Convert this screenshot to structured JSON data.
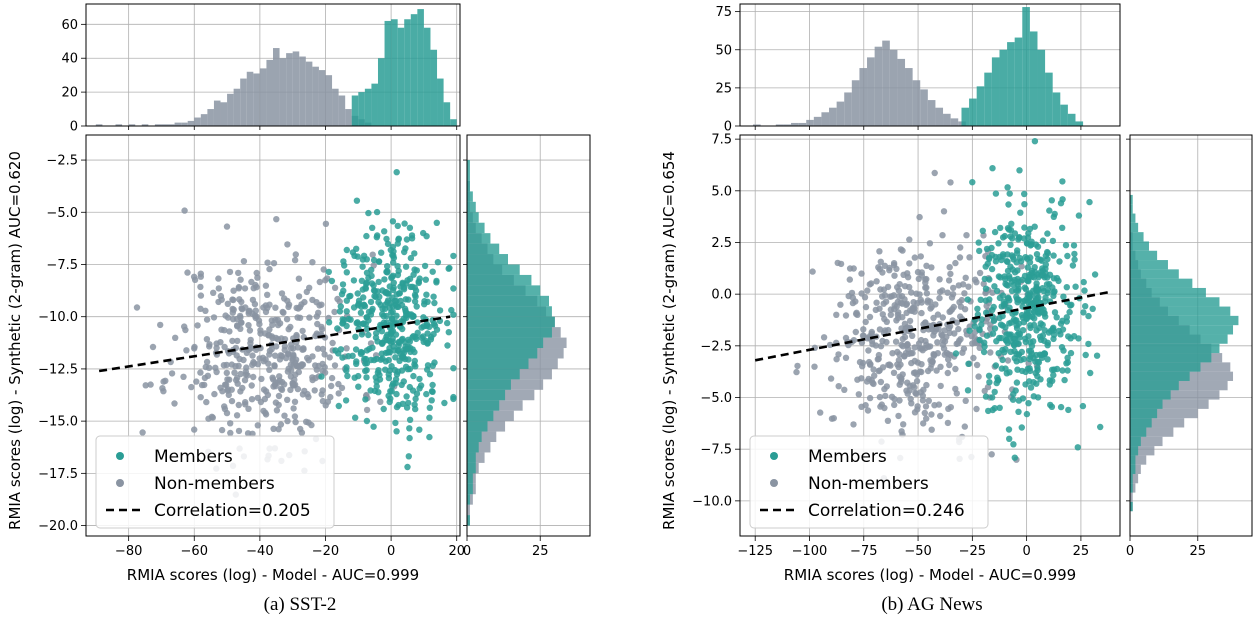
{
  "colors": {
    "members": "#2a9d95",
    "non_members": "#8a94a2",
    "fit_line": "#000000"
  },
  "captions": {
    "a": "(a) SST-2",
    "b": "(b) AG News"
  },
  "chart_data": [
    {
      "type": "scatter",
      "dataset": "SST-2",
      "xlabel": "RMIA scores (log) - Model - AUC=0.999",
      "ylabel": "RMIA scores (log) - Synthetic (2-gram) AUC=0.620",
      "xlim": [
        -93,
        21
      ],
      "ylim": [
        -20.5,
        -1.3
      ],
      "xticks": [
        -80,
        -60,
        -40,
        -20,
        0,
        20
      ],
      "yticks": [
        -20.0,
        -17.5,
        -15.0,
        -12.5,
        -10.0,
        -7.5,
        -5.0,
        -2.5
      ],
      "grid": true,
      "legend_position": "lower-left",
      "series": [
        {
          "name": "Members",
          "x_center": 0,
          "x_spread": 7.5,
          "y_center": -10.2,
          "y_spread": 2.3,
          "count": 450
        },
        {
          "name": "Non-members",
          "x_center": -38,
          "x_spread": 14,
          "y_center": -11.6,
          "y_spread": 2.3,
          "count": 450
        }
      ],
      "correlation_line": {
        "label": "Correlation=0.205",
        "x": [
          -89,
          18
        ],
        "y": [
          -12.6,
          -10.0
        ]
      },
      "top_histogram": {
        "ylim": [
          0,
          72
        ],
        "yticks": [
          0,
          20,
          40,
          60
        ],
        "members": {
          "x_start": -12,
          "bin_width": 2,
          "counts": [
            18,
            20,
            22,
            25,
            40,
            62,
            63,
            58,
            63,
            66,
            69,
            58,
            45,
            28,
            14,
            4
          ]
        },
        "non_members": {
          "x_start": -90,
          "bin_width": 2,
          "counts": [
            1,
            0,
            0,
            1,
            0,
            1,
            0,
            1,
            0,
            1,
            1,
            1,
            2,
            2,
            3,
            5,
            7,
            10,
            15,
            14,
            19,
            22,
            28,
            32,
            31,
            34,
            39,
            46,
            40,
            43,
            44,
            41,
            38,
            35,
            33,
            30,
            22,
            18,
            10,
            6,
            4,
            2
          ]
        }
      },
      "right_histogram": {
        "xlim": [
          0,
          42
        ],
        "xticks": [
          0,
          25
        ],
        "members": {
          "y_start": -20,
          "bin_width": 0.5,
          "counts": [
            1,
            0,
            1,
            2,
            2,
            3,
            3,
            4,
            5,
            7,
            9,
            11,
            13,
            15,
            18,
            21,
            24,
            26,
            29,
            30,
            29,
            28,
            25,
            22,
            18,
            14,
            11,
            8,
            6,
            4,
            3,
            2,
            1,
            1,
            1
          ]
        },
        "non_members": {
          "y_start": -20,
          "bin_width": 0.5,
          "counts": [
            1,
            1,
            2,
            3,
            3,
            4,
            6,
            8,
            10,
            13,
            16,
            19,
            23,
            26,
            29,
            31,
            33,
            34,
            32,
            30,
            27,
            24,
            20,
            16,
            12,
            9,
            7,
            5,
            3,
            2,
            1,
            1,
            1,
            0,
            0
          ]
        }
      }
    },
    {
      "type": "scatter",
      "dataset": "AG News",
      "xlabel": "RMIA scores (log) - Model - AUC=0.999",
      "ylabel": "RMIA scores (log) - Synthetic (2-gram) AUC=0.654",
      "xlim": [
        -132,
        43
      ],
      "ylim": [
        -11.7,
        7.7
      ],
      "xticks": [
        -125,
        -100,
        -75,
        -50,
        -25,
        0,
        25
      ],
      "yticks": [
        -10.0,
        -7.5,
        -5.0,
        -2.5,
        0.0,
        2.5,
        5.0,
        7.5
      ],
      "grid": true,
      "legend_position": "lower-left",
      "series": [
        {
          "name": "Members",
          "x_center": 0,
          "x_spread": 12,
          "y_center": -0.7,
          "y_spread": 2.4,
          "count": 480
        },
        {
          "name": "Non-members",
          "x_center": -52,
          "x_spread": 20,
          "y_center": -2.0,
          "y_spread": 2.3,
          "count": 480
        }
      ],
      "correlation_line": {
        "label": "Correlation=0.246",
        "x": [
          -125,
          38
        ],
        "y": [
          -3.2,
          0.1
        ]
      },
      "top_histogram": {
        "ylim": [
          0,
          80
        ],
        "yticks": [
          0,
          25,
          50,
          75
        ],
        "members": {
          "x_start": -30,
          "bin_width": 3.5,
          "counts": [
            12,
            18,
            26,
            35,
            45,
            50,
            55,
            58,
            78,
            62,
            50,
            35,
            22,
            14,
            8,
            3
          ]
        },
        "non_members": {
          "x_start": -126,
          "bin_width": 3.5,
          "counts": [
            1,
            0,
            0,
            1,
            1,
            2,
            2,
            4,
            6,
            9,
            12,
            16,
            22,
            30,
            38,
            45,
            52,
            56,
            50,
            44,
            38,
            30,
            24,
            17,
            12,
            8,
            5,
            3
          ]
        }
      },
      "right_histogram": {
        "xlim": [
          0,
          45
        ],
        "xticks": [
          0,
          25
        ],
        "members": {
          "y_start": -10.5,
          "bin_width": 0.45,
          "counts": [
            1,
            0,
            1,
            1,
            2,
            2,
            3,
            4,
            6,
            8,
            10,
            12,
            15,
            18,
            22,
            26,
            30,
            33,
            36,
            38,
            40,
            37,
            33,
            28,
            23,
            18,
            14,
            10,
            7,
            5,
            3,
            2,
            1,
            1
          ]
        },
        "non_members": {
          "y_start": -10.5,
          "bin_width": 0.45,
          "counts": [
            1,
            1,
            2,
            3,
            4,
            6,
            9,
            12,
            16,
            20,
            25,
            29,
            33,
            36,
            38,
            37,
            34,
            30,
            26,
            22,
            18,
            14,
            11,
            8,
            6,
            4,
            3,
            2,
            1,
            1,
            0,
            0,
            0,
            0
          ]
        }
      }
    }
  ]
}
